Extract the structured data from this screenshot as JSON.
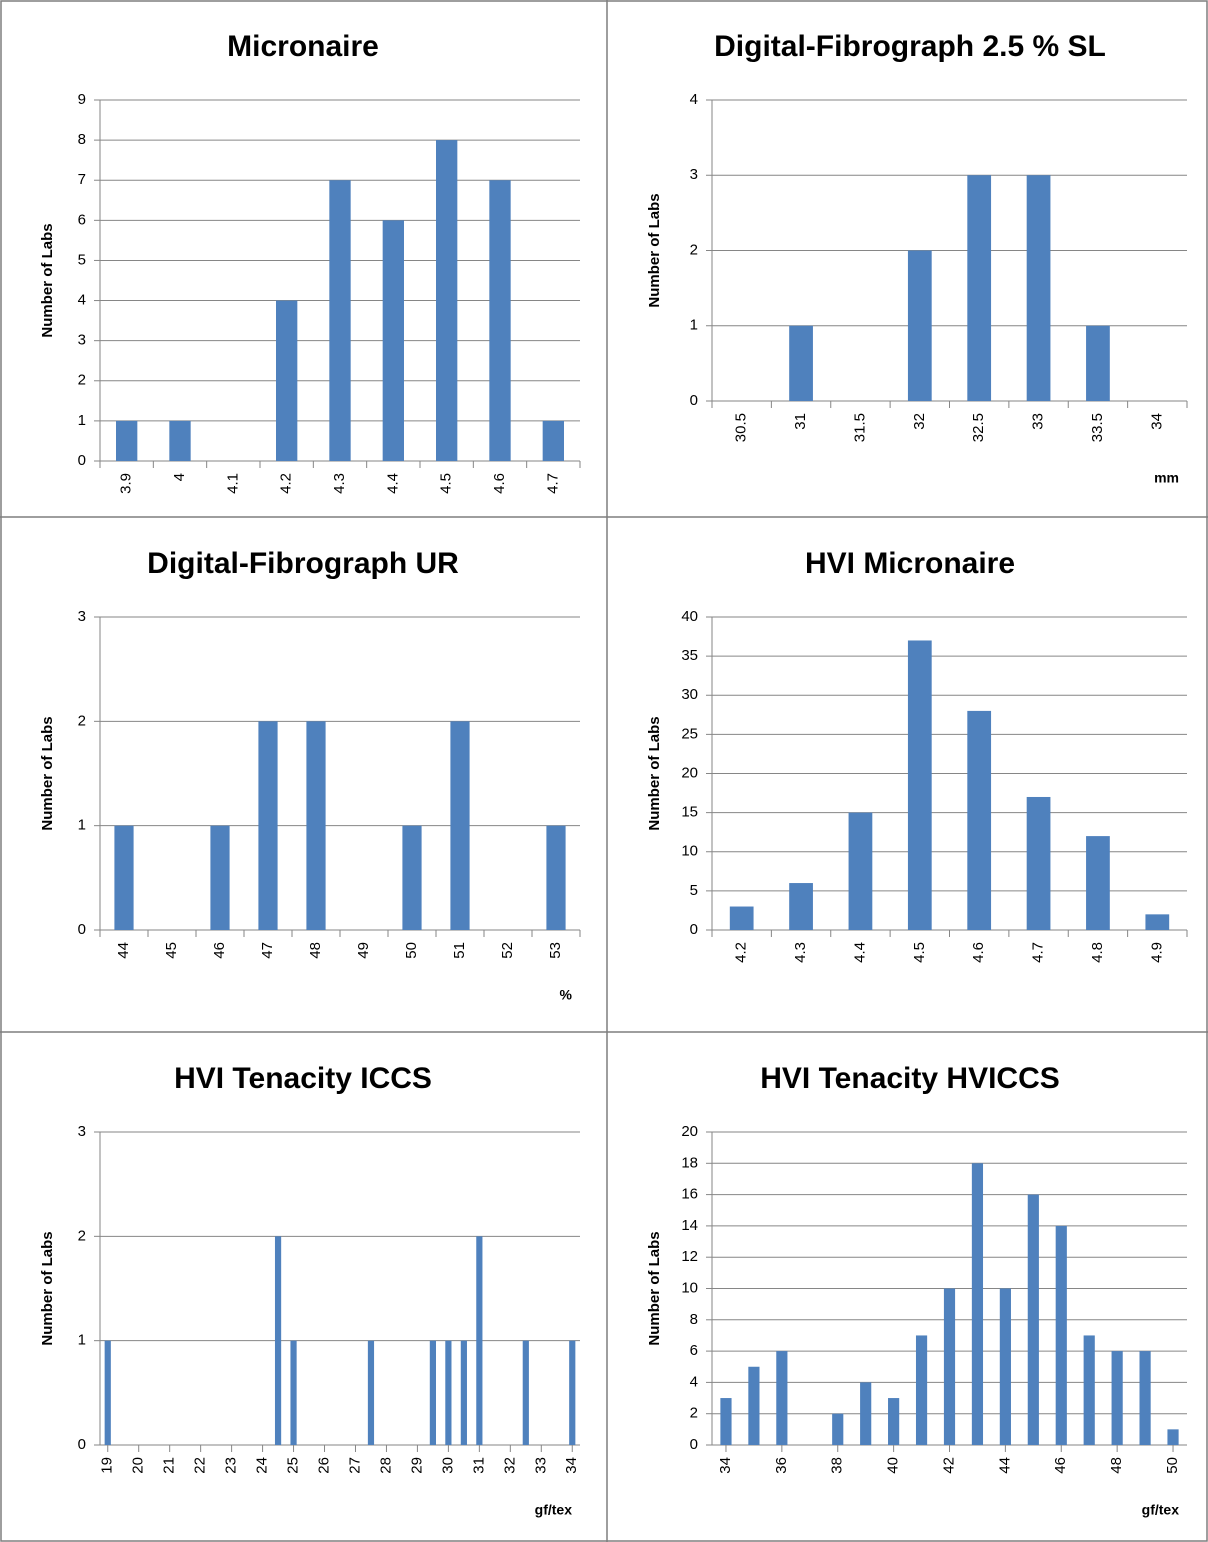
{
  "chart_data": [
    {
      "type": "bar",
      "title": "Micronaire",
      "y_label": "Number of Labs",
      "categories": [
        "3.9",
        "4",
        "4.1",
        "4.2",
        "4.3",
        "4.4",
        "4.5",
        "4.6",
        "4.7"
      ],
      "values": [
        1,
        1,
        0,
        4,
        7,
        6,
        8,
        7,
        1
      ],
      "color": "#4f81bd",
      "ylim": [
        0,
        9
      ],
      "yticks": [
        0,
        1,
        2,
        3,
        4,
        5,
        6,
        7,
        8,
        9
      ],
      "grid": true
    },
    {
      "type": "bar",
      "title": "Digital-Fibrograph 2.5 % SL",
      "y_label": "Number of Labs",
      "x_label": "mm",
      "categories": [
        "30.5",
        "31",
        "31.5",
        "32",
        "32.5",
        "33",
        "33.5",
        "34"
      ],
      "values": [
        0,
        1,
        0,
        2,
        3,
        3,
        1,
        0
      ],
      "color": "#4f81bd",
      "ylim": [
        0,
        4
      ],
      "yticks": [
        0,
        1,
        2,
        3,
        4
      ],
      "grid": true
    },
    {
      "type": "bar",
      "title": "Digital-Fibrograph UR",
      "y_label": "Number of Labs",
      "x_label": "%",
      "categories": [
        "44",
        "45",
        "46",
        "47",
        "48",
        "49",
        "50",
        "51",
        "52",
        "53"
      ],
      "values": [
        1,
        0,
        1,
        2,
        2,
        0,
        1,
        2,
        0,
        1
      ],
      "color": "#4f81bd",
      "ylim": [
        0,
        3
      ],
      "yticks": [
        0,
        1,
        2,
        3
      ],
      "grid": true
    },
    {
      "type": "bar",
      "title": "HVI Micronaire",
      "y_label": "Number of Labs",
      "categories": [
        "4.2",
        "4.3",
        "4.4",
        "4.5",
        "4.6",
        "4.7",
        "4.8",
        "4.9"
      ],
      "values": [
        3,
        6,
        15,
        37,
        28,
        17,
        12,
        2
      ],
      "color": "#4f81bd",
      "ylim": [
        0,
        40
      ],
      "yticks": [
        0,
        5,
        10,
        15,
        20,
        25,
        30,
        35,
        40
      ],
      "grid": true
    },
    {
      "type": "bar",
      "title": "HVI Tenacity ICCS",
      "y_label": "Number of Labs",
      "x_label": "gf/tex",
      "x": [
        19,
        24.5,
        25,
        27.5,
        29.5,
        30,
        30.5,
        31,
        32.5,
        34
      ],
      "values": [
        1,
        2,
        1,
        1,
        1,
        1,
        1,
        2,
        1,
        1
      ],
      "color": "#4f81bd",
      "xlim": [
        18.75,
        34.25
      ],
      "xticks": [
        19,
        20,
        21,
        22,
        23,
        24,
        25,
        26,
        27,
        28,
        29,
        30,
        31,
        32,
        33,
        34
      ],
      "ylim": [
        0,
        3
      ],
      "yticks": [
        0,
        1,
        2,
        3
      ],
      "grid": true
    },
    {
      "type": "bar",
      "title": "HVI Tenacity HVICCS",
      "y_label": "Number of Labs",
      "x_label": "gf/tex",
      "x": [
        34,
        35,
        36,
        38,
        39,
        40,
        41,
        42,
        43,
        44,
        45,
        46,
        47,
        48,
        49,
        50
      ],
      "values": [
        3,
        5,
        6,
        2,
        4,
        3,
        7,
        10,
        18,
        10,
        16,
        14,
        7,
        6,
        6,
        1
      ],
      "color": "#4f81bd",
      "xlim": [
        33.5,
        50.5
      ],
      "xticks": [
        34,
        36,
        38,
        40,
        42,
        44,
        46,
        48,
        50
      ],
      "ylim": [
        0,
        20
      ],
      "yticks": [
        0,
        2,
        4,
        6,
        8,
        10,
        12,
        14,
        16,
        18,
        20
      ],
      "grid": true
    }
  ]
}
